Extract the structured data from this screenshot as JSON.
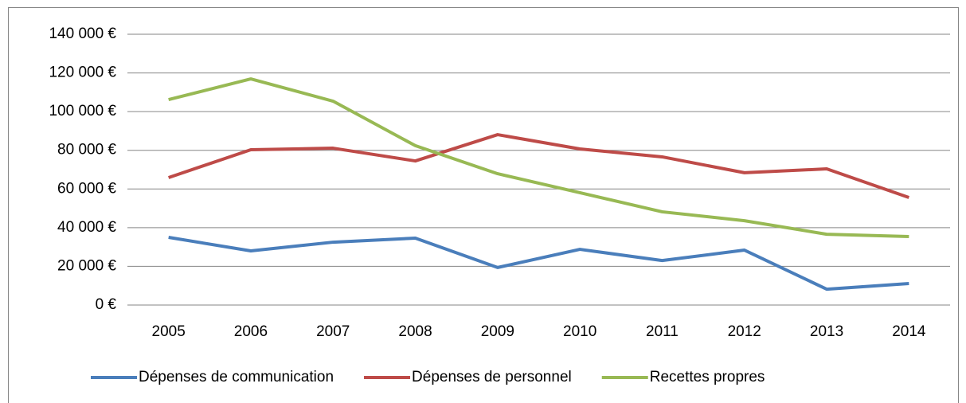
{
  "chart_data": {
    "type": "line",
    "categories": [
      "2005",
      "2006",
      "2007",
      "2008",
      "2009",
      "2010",
      "2011",
      "2012",
      "2013",
      "2014"
    ],
    "series": [
      {
        "name": "Dépenses de communication",
        "color": "#4a7ebb",
        "values": [
          35000,
          28000,
          32500,
          34600,
          19400,
          28800,
          23000,
          28400,
          8200,
          11100
        ]
      },
      {
        "name": "Dépenses de personnel",
        "color": "#be4b48",
        "values": [
          65900,
          80300,
          81100,
          74500,
          88100,
          80700,
          76600,
          68400,
          70400,
          55600
        ]
      },
      {
        "name": "Recettes propres",
        "color": "#98b954",
        "values": [
          106200,
          116900,
          105400,
          82400,
          67900,
          58100,
          48200,
          43600,
          36600,
          35400
        ]
      }
    ],
    "ylim": [
      0,
      140000
    ],
    "yticks": [
      {
        "value": 0,
        "label": "0 €"
      },
      {
        "value": 20000,
        "label": "20 000 €"
      },
      {
        "value": 40000,
        "label": "40 000 €"
      },
      {
        "value": 60000,
        "label": "60 000 €"
      },
      {
        "value": 80000,
        "label": "80 000 €"
      },
      {
        "value": 100000,
        "label": "100 000 €"
      },
      {
        "value": 120000,
        "label": "120 000 €"
      },
      {
        "value": 140000,
        "label": "140 000 €"
      }
    ],
    "grid": true,
    "legend": "bottom"
  }
}
